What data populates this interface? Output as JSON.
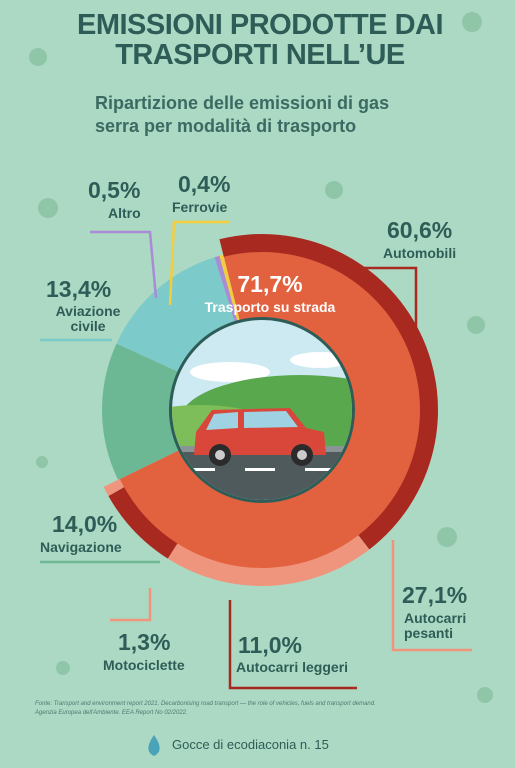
{
  "chart_data": {
    "type": "donut",
    "title": "EMISSIONI PRODOTTE DAI TRASPORTI NELL’UE",
    "subtitle": "Ripartizione delle emissioni di gas serra per modalità di trasporto",
    "categories": [
      "Trasporto su strada",
      "Navigazione",
      "Aviazione civile",
      "Altro",
      "Ferrovie"
    ],
    "values": [
      71.7,
      14.0,
      13.4,
      0.5,
      0.4
    ],
    "value_labels": [
      "71,7%",
      "14,0%",
      "13,4%",
      "0,5%",
      "0,4%"
    ],
    "colors": [
      "#e2623f",
      "#6db894",
      "#7ccaca",
      "#a98bd6",
      "#f4cd3c"
    ],
    "outer_ring": {
      "categories": [
        "Automobili",
        "Autocarri pesanti",
        "Autocarri leggeri",
        "Motociclette"
      ],
      "values": [
        60.6,
        27.1,
        11.0,
        1.3
      ],
      "value_labels": [
        "60,6%",
        "27,1%",
        "11,0%",
        "1,3%"
      ],
      "colors": [
        "#a8291f",
        "#f0957d",
        "#a8291f",
        "#f0957d"
      ]
    },
    "source": "Fonte: Transport and environment report 2021. Decarbonising road transport — the role of vehicles, fuels and transport demand. Agenzia Europea dell'Ambiente. EEA Report No 02/2022.",
    "footer": "Gocce di ecodiaconia n. 15"
  }
}
